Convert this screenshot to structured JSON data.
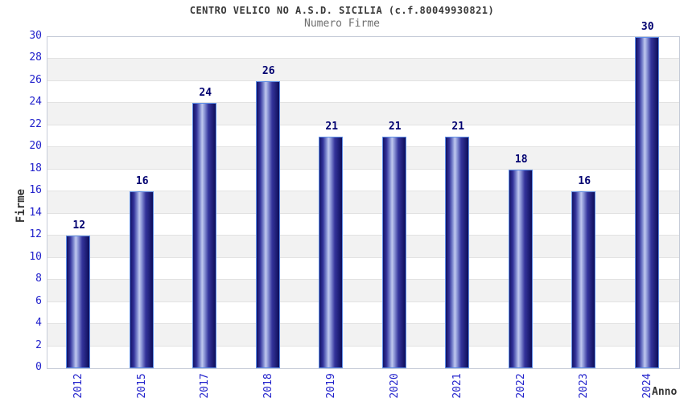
{
  "chart_data": {
    "type": "bar",
    "title": "CENTRO VELICO NO A.S.D. SICILIA (c.f.80049930821)",
    "subtitle": "Numero Firme",
    "xlabel": "Anno",
    "ylabel": "Firme",
    "categories": [
      "2012",
      "2015",
      "2017",
      "2018",
      "2019",
      "2020",
      "2021",
      "2022",
      "2023",
      "2024"
    ],
    "values": [
      12,
      16,
      24,
      26,
      21,
      21,
      21,
      18,
      16,
      30
    ],
    "ylim": [
      0,
      30
    ],
    "ytick_step": 2,
    "legend": "none",
    "grid": "horizontal alternating bands every 2 units",
    "colors": {
      "bar_dark": "#121266",
      "bar_highlight": "#c0c8ee",
      "bar_border": "#5f8fe8",
      "axis_tick_label": "#2323cc",
      "value_label": "#000070",
      "band_grey": "#f2f2f2",
      "gridline": "#e2e2e2",
      "plot_border": "#c6ccd8",
      "title_color": "#383838",
      "subtitle_color": "#6f6f6f",
      "axis_title_color": "#333333",
      "background": "#ffffff"
    }
  }
}
